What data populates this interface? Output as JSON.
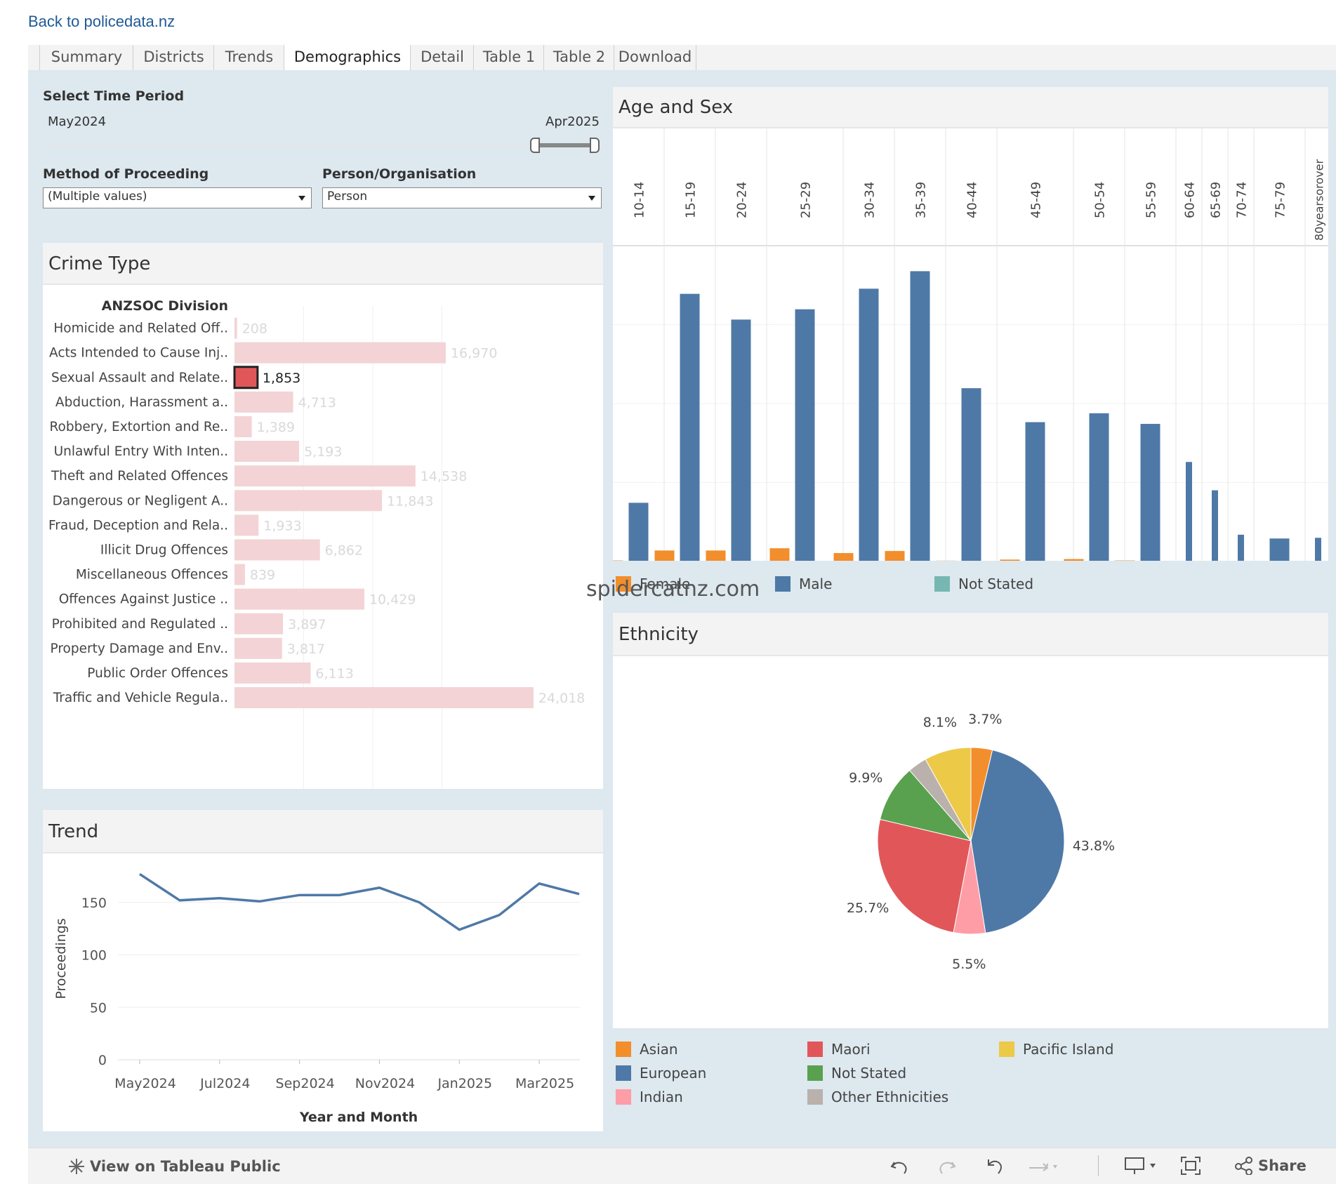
{
  "back_link": "Back to policedata.nz",
  "tabs": [
    "Summary",
    "Districts",
    "Trends",
    "Demographics",
    "Detail",
    "Table 1",
    "Table 2",
    "Download"
  ],
  "active_tab": "Demographics",
  "filters": {
    "time_period_label": "Select Time Period",
    "time_start": "May2024",
    "time_end": "Apr2025",
    "method_label": "Method of Proceeding",
    "method_value": "(Multiple values)",
    "person_label": "Person/Organisation",
    "person_value": "Person"
  },
  "watermark": "spidercatnz.com",
  "footer": {
    "view_label": "View on Tableau Public",
    "share_label": "Share"
  },
  "colors": {
    "crime_bar_light": "#f3d3d6",
    "crime_bar_selected": "#e15759",
    "line": "#4e79a7",
    "female": "#f28e2b",
    "male": "#4e79a7",
    "not_stated": "#76b7b2",
    "dashboard_bg": "#dde8ef"
  },
  "chart_data": [
    {
      "id": "crime_type",
      "title": "Crime Type",
      "type": "bar",
      "orientation": "horizontal",
      "header": "ANZSOC Division",
      "categories": [
        "Homicide and Related Off..",
        "Acts Intended to Cause Inj..",
        "Sexual Assault and Relate..",
        "Abduction, Harassment a..",
        "Robbery, Extortion and Re..",
        "Unlawful Entry With Inten..",
        "Theft and Related Offences",
        "Dangerous or Negligent A..",
        "Fraud, Deception and Rela..",
        "Illicit Drug Offences",
        "Miscellaneous Offences",
        "Offences Against Justice ..",
        "Prohibited and Regulated ..",
        "Property Damage and Env..",
        "Public Order Offences",
        "Traffic and Vehicle Regula.."
      ],
      "values": [
        208,
        16970,
        1853,
        4713,
        1389,
        5193,
        14538,
        11843,
        1933,
        6862,
        839,
        10429,
        3897,
        3817,
        6113,
        24018
      ],
      "value_labels": [
        "208",
        "16,970",
        "1,853",
        "4,713",
        "1,389",
        "5,193",
        "14,538",
        "11,843",
        "1,933",
        "6,862",
        "839",
        "10,429",
        "3,897",
        "3,817",
        "6,113",
        "24,018"
      ],
      "selected": "Sexual Assault and Relate..",
      "xlim": [
        0,
        30000
      ]
    },
    {
      "id": "trend",
      "title": "Trend",
      "type": "line",
      "xlabel": "Year and Month",
      "ylabel": "Proceedings",
      "x": [
        "May2024",
        "Jun2024",
        "Jul2024",
        "Aug2024",
        "Sep2024",
        "Oct2024",
        "Nov2024",
        "Dec2024",
        "Jan2025",
        "Feb2025",
        "Mar2025",
        "Apr2025"
      ],
      "x_tick_labels": [
        "May2024",
        "Jul2024",
        "Sep2024",
        "Nov2024",
        "Jan2025",
        "Mar2025"
      ],
      "values": [
        177,
        152,
        154,
        151,
        157,
        157,
        164,
        150,
        124,
        138,
        168,
        158
      ],
      "ylim": [
        0,
        190
      ],
      "yticks": [
        0,
        50,
        100,
        150
      ]
    },
    {
      "id": "age_sex",
      "title": "Age and Sex",
      "type": "bar",
      "categories": [
        "10-14",
        "15-19",
        "20-24",
        "25-29",
        "30-34",
        "35-39",
        "40-44",
        "45-49",
        "50-54",
        "55-59",
        "60-64",
        "65-69",
        "70-74",
        "75-79",
        "80yearsorover"
      ],
      "series": [
        {
          "name": "Female",
          "values": [
            0.6,
            6.4,
            6.4,
            7.7,
            4.9,
            6.1,
            0.5,
            1.1,
            1.4,
            0.6,
            0,
            0,
            0,
            0,
            0
          ]
        },
        {
          "name": "Male",
          "values": [
            34.2,
            156,
            141,
            147,
            159,
            169.2,
            101,
            81.2,
            86.4,
            80.2,
            58,
            41.5,
            15.6,
            13.4,
            13.8
          ]
        },
        {
          "name": "Not Stated",
          "values": [
            0,
            0,
            0,
            0,
            0.4,
            0,
            0,
            0,
            0.5,
            0,
            0,
            0,
            0,
            0.4,
            0
          ]
        }
      ],
      "ylim": [
        0,
        180
      ]
    },
    {
      "id": "ethnicity",
      "title": "Ethnicity",
      "type": "pie",
      "labels": [
        "Asian",
        "European",
        "Indian",
        "Maori",
        "Not Stated",
        "Other Ethnicities",
        "Pacific Island"
      ],
      "values": [
        3.7,
        43.8,
        5.5,
        25.7,
        9.9,
        3.3,
        8.1
      ],
      "value_labels": [
        "3.7%",
        "43.8%",
        "5.5%",
        "25.7%",
        "9.9%",
        "",
        "8.1%"
      ],
      "colors": [
        "#f28e2b",
        "#4e79a7",
        "#ff9da7",
        "#e15759",
        "#59a14f",
        "#bab0ac",
        "#edc948"
      ]
    }
  ]
}
